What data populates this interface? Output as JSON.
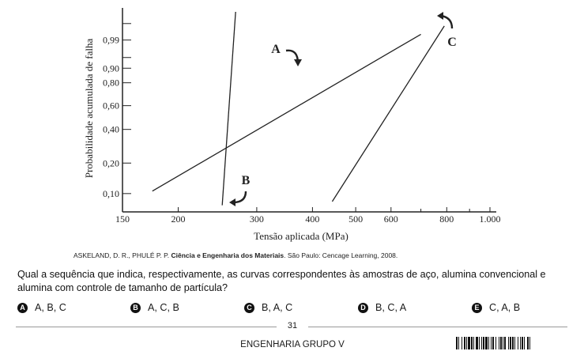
{
  "chart_data": {
    "type": "line",
    "ylabel": "Probabilidade acumulada de falha",
    "xlabel": "Tensão aplicada (MPa)",
    "x_scale": "log",
    "xlim": [
      150,
      1000
    ],
    "x_ticks": [
      150,
      200,
      300,
      400,
      500,
      600,
      800,
      1000
    ],
    "x_tick_labels": [
      "150",
      "200",
      "300",
      "400",
      "500",
      "600",
      "800",
      "1.000"
    ],
    "y_scale": "weibull-probability",
    "y_ticks": [
      0.1,
      0.2,
      0.4,
      0.6,
      0.8,
      0.9,
      0.99
    ],
    "y_tick_labels": [
      "0,10",
      "0,20",
      "0,40",
      "0,60",
      "0,80",
      "0,90",
      "0,99"
    ],
    "grid": false,
    "series": [
      {
        "name": "A",
        "x": [
          175,
          700
        ],
        "y": [
          0.106,
          0.995
        ]
      },
      {
        "name": "B",
        "x": [
          251,
          269
        ],
        "y": [
          0.076,
          0.9999
        ]
      },
      {
        "name": "C",
        "x": [
          443,
          790
        ],
        "y": [
          0.083,
          0.9985
        ]
      }
    ]
  },
  "citation": {
    "authors": "ASKELAND, D. R., PHULÉ P. P. ",
    "title": "Ciência e Engenharia dos Materiais",
    "rest": ". São Paulo: Cencage Learning, 2008."
  },
  "question": "Qual a sequência que indica, respectivamente, as curvas correspondentes às amostras de aço, alumina convencional e alumina com controle de tamanho de partícula?",
  "options": [
    {
      "letter": "A",
      "text": "A, B, C"
    },
    {
      "letter": "B",
      "text": "A, C, B"
    },
    {
      "letter": "C",
      "text": "B, A, C"
    },
    {
      "letter": "D",
      "text": "B, C, A"
    },
    {
      "letter": "E",
      "text": "C, A, B"
    }
  ],
  "footer": {
    "page": "31",
    "title": "ENGENHARIA GRUPO V"
  }
}
